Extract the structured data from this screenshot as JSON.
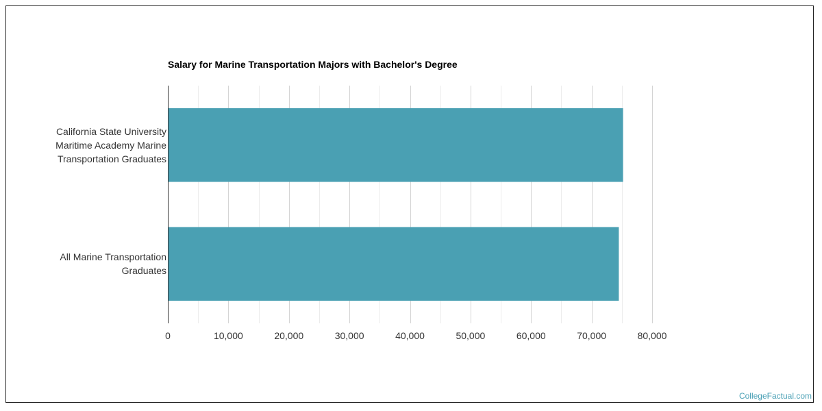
{
  "chart_data": {
    "type": "bar",
    "orientation": "horizontal",
    "title": "Salary for Marine Transportation Majors with Bachelor's Degree",
    "categories": [
      [
        "California State University",
        "Maritime Academy Marine",
        "Transportation Graduates"
      ],
      [
        "All Marine Transportation",
        "Graduates"
      ]
    ],
    "values": [
      75200,
      74500
    ],
    "xlim": [
      0,
      80000
    ],
    "xticks": [
      0,
      10000,
      20000,
      30000,
      40000,
      50000,
      60000,
      70000,
      80000
    ],
    "xtick_labels": [
      "0",
      "10,000",
      "20,000",
      "30,000",
      "40,000",
      "50,000",
      "60,000",
      "70,000",
      "80,000"
    ],
    "grid": true,
    "bar_color": "#4aa0b3"
  },
  "watermark": "CollegeFactual.com"
}
